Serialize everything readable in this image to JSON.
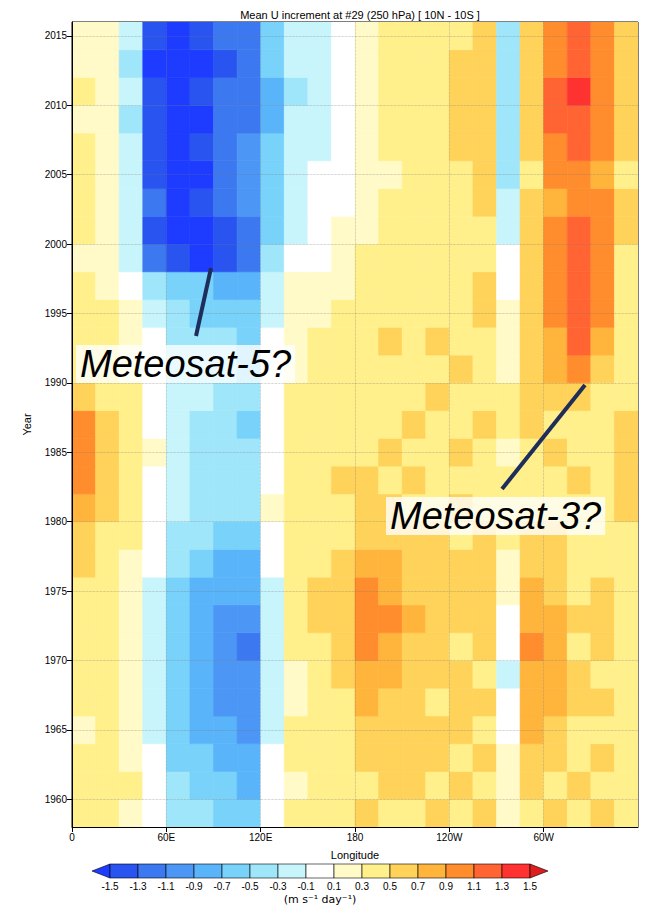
{
  "chart_data": {
    "type": "heatmap",
    "title": "Mean U increment at #29 (250 hPa) [ 10N - 10S ]",
    "x_label": "Longitude",
    "y_label": "Year",
    "xlim": [
      0,
      360
    ],
    "xticks": [
      0,
      {
        "value": 60,
        "label": "60E"
      },
      {
        "value": 120,
        "label": "120E"
      },
      180,
      {
        "value": 240,
        "label": "120W"
      },
      {
        "value": 300,
        "label": "60W"
      }
    ],
    "ylim": [
      1958,
      2016
    ],
    "yticks": [
      1960,
      1965,
      1970,
      1975,
      1980,
      1985,
      1990,
      1995,
      2000,
      2005,
      2010,
      2015
    ],
    "grid": true,
    "x_bins": [
      0,
      15,
      30,
      45,
      60,
      75,
      90,
      105,
      120,
      135,
      150,
      165,
      180,
      195,
      210,
      225,
      240,
      255,
      270,
      285,
      300,
      315,
      330,
      345,
      360
    ],
    "y_bins": [
      1958,
      1960,
      1962,
      1964,
      1966,
      1968,
      1970,
      1972,
      1974,
      1976,
      1978,
      1980,
      1982,
      1984,
      1986,
      1988,
      1990,
      1992,
      1994,
      1996,
      1998,
      2000,
      2002,
      2004,
      2006,
      2008,
      2010,
      2012,
      2014,
      2016
    ],
    "cells": [
      [
        0.4,
        0.3,
        0.2,
        0.0,
        -0.4,
        -0.5,
        -0.6,
        -0.7,
        -0.1,
        0.3,
        0.3,
        0.3,
        0.5,
        0.4,
        0.4,
        0.5,
        0.4,
        0.5,
        0.1,
        0.4,
        0.5,
        0.4,
        0.5,
        0.3
      ],
      [
        0.3,
        0.4,
        0.3,
        -0.1,
        -0.5,
        -0.7,
        -0.7,
        -0.8,
        0.0,
        0.2,
        0.4,
        0.3,
        0.4,
        0.5,
        0.5,
        0.4,
        0.5,
        0.4,
        0.2,
        0.5,
        0.4,
        0.5,
        0.4,
        0.4
      ],
      [
        0.3,
        0.3,
        0.2,
        -0.1,
        -0.6,
        -0.7,
        -0.8,
        -0.9,
        -0.1,
        0.3,
        0.4,
        0.4,
        0.5,
        0.6,
        0.5,
        0.5,
        0.4,
        0.5,
        0.1,
        0.6,
        0.5,
        0.4,
        0.5,
        0.3
      ],
      [
        0.2,
        0.3,
        0.2,
        -0.2,
        -0.6,
        -0.8,
        -0.9,
        -1.0,
        -0.2,
        0.3,
        0.3,
        0.4,
        0.6,
        0.6,
        0.5,
        0.5,
        0.5,
        0.4,
        0.0,
        0.7,
        0.6,
        0.4,
        0.4,
        0.3
      ],
      [
        0.3,
        0.4,
        0.2,
        -0.2,
        -0.7,
        -0.8,
        -1.0,
        -1.1,
        -0.2,
        0.2,
        0.3,
        0.4,
        0.7,
        0.6,
        0.5,
        0.4,
        0.5,
        0.5,
        -0.1,
        0.8,
        0.7,
        0.5,
        0.5,
        0.4
      ],
      [
        0.4,
        0.3,
        0.1,
        -0.2,
        -0.7,
        -0.9,
        -1.0,
        -1.1,
        -0.3,
        0.2,
        0.4,
        0.5,
        0.8,
        0.7,
        0.6,
        0.5,
        0.5,
        0.4,
        -0.2,
        0.8,
        0.8,
        0.5,
        0.4,
        0.3
      ],
      [
        0.3,
        0.3,
        0.2,
        -0.3,
        -0.7,
        -0.9,
        -1.1,
        -1.2,
        -0.3,
        0.3,
        0.4,
        0.5,
        0.9,
        0.8,
        0.6,
        0.5,
        0.4,
        0.5,
        -0.1,
        0.9,
        0.7,
        0.4,
        0.5,
        0.4
      ],
      [
        0.3,
        0.4,
        0.2,
        -0.2,
        -0.6,
        -0.8,
        -1.0,
        -1.0,
        -0.2,
        0.3,
        0.5,
        0.6,
        1.0,
        0.9,
        0.7,
        0.6,
        0.5,
        0.5,
        0.0,
        0.8,
        0.7,
        0.5,
        0.5,
        0.3
      ],
      [
        0.4,
        0.3,
        0.2,
        -0.2,
        -0.6,
        -0.8,
        -0.9,
        -0.9,
        -0.2,
        0.3,
        0.5,
        0.6,
        1.0,
        0.8,
        0.6,
        0.5,
        0.5,
        0.6,
        0.1,
        0.7,
        0.6,
        0.4,
        0.5,
        0.3
      ],
      [
        0.5,
        0.4,
        0.2,
        -0.1,
        -0.5,
        -0.7,
        -0.8,
        -0.8,
        -0.1,
        0.4,
        0.4,
        0.5,
        0.8,
        0.7,
        0.6,
        0.5,
        0.5,
        0.5,
        0.2,
        0.6,
        0.5,
        0.4,
        0.4,
        0.4
      ],
      [
        0.6,
        0.4,
        0.3,
        0.0,
        -0.4,
        -0.5,
        -0.6,
        -0.6,
        0.0,
        0.4,
        0.4,
        0.4,
        0.6,
        0.5,
        0.5,
        0.5,
        0.4,
        0.5,
        0.3,
        0.5,
        0.5,
        0.4,
        0.4,
        0.4
      ],
      [
        0.8,
        0.5,
        0.3,
        0.0,
        -0.3,
        -0.4,
        -0.5,
        -0.5,
        0.1,
        0.4,
        0.4,
        0.4,
        0.5,
        0.5,
        0.4,
        0.4,
        0.5,
        0.4,
        0.3,
        0.4,
        0.4,
        0.4,
        0.3,
        0.5
      ],
      [
        0.9,
        0.6,
        0.3,
        0.0,
        -0.3,
        -0.4,
        -0.4,
        -0.5,
        0.0,
        0.3,
        0.4,
        0.5,
        0.5,
        0.4,
        0.5,
        0.4,
        0.4,
        0.4,
        0.3,
        0.4,
        0.4,
        0.5,
        0.4,
        0.5
      ],
      [
        1.0,
        0.6,
        0.4,
        0.1,
        -0.3,
        -0.4,
        -0.5,
        -0.5,
        0.0,
        0.3,
        0.3,
        0.4,
        0.4,
        0.5,
        0.4,
        0.4,
        0.5,
        0.4,
        0.2,
        0.4,
        0.5,
        0.4,
        0.3,
        0.6
      ],
      [
        0.9,
        0.5,
        0.3,
        0.0,
        -0.3,
        -0.4,
        -0.5,
        -0.6,
        0.0,
        0.3,
        0.4,
        0.4,
        0.4,
        0.4,
        0.5,
        0.4,
        0.4,
        0.5,
        0.3,
        0.5,
        0.4,
        0.4,
        0.4,
        0.5
      ],
      [
        0.6,
        0.4,
        0.3,
        0.0,
        -0.3,
        -0.3,
        -0.4,
        -0.5,
        0.0,
        0.3,
        0.3,
        0.4,
        0.3,
        0.4,
        0.4,
        0.5,
        0.4,
        0.4,
        0.3,
        0.5,
        0.5,
        0.6,
        0.4,
        0.4
      ],
      [
        0.4,
        0.4,
        0.2,
        -0.1,
        -0.4,
        -0.4,
        -0.5,
        -0.6,
        -0.1,
        0.2,
        0.3,
        0.3,
        0.4,
        0.4,
        0.4,
        0.4,
        0.5,
        0.4,
        0.2,
        0.5,
        0.7,
        0.9,
        0.6,
        0.3
      ],
      [
        0.4,
        0.3,
        0.2,
        -0.1,
        -0.4,
        -0.5,
        -0.5,
        -0.6,
        -0.1,
        0.2,
        0.3,
        0.3,
        0.4,
        0.5,
        0.4,
        0.5,
        0.4,
        0.4,
        0.2,
        0.5,
        0.8,
        1.1,
        0.8,
        0.3
      ],
      [
        0.3,
        0.3,
        0.1,
        -0.2,
        -0.5,
        -0.6,
        -0.6,
        -0.7,
        -0.2,
        0.1,
        0.2,
        0.3,
        0.4,
        0.4,
        0.4,
        0.4,
        0.4,
        0.5,
        0.1,
        0.6,
        0.9,
        1.1,
        0.9,
        0.4
      ],
      [
        0.3,
        0.2,
        0.0,
        -0.4,
        -0.7,
        -0.7,
        -0.8,
        -0.8,
        -0.3,
        0.1,
        0.2,
        0.2,
        0.3,
        0.4,
        0.4,
        0.4,
        0.4,
        0.5,
        0.0,
        0.6,
        0.9,
        1.2,
        0.9,
        0.4
      ],
      [
        0.2,
        0.1,
        -0.2,
        -1.2,
        -1.5,
        -1.6,
        -1.4,
        -1.2,
        -0.5,
        -0.1,
        0.0,
        0.1,
        0.3,
        0.3,
        0.3,
        0.4,
        0.4,
        0.4,
        -0.1,
        0.5,
        0.9,
        1.2,
        1.0,
        0.4
      ],
      [
        0.3,
        0.1,
        -0.3,
        -1.4,
        -1.6,
        -1.6,
        -1.5,
        -1.2,
        -0.6,
        -0.2,
        -0.1,
        0.1,
        0.2,
        0.3,
        0.3,
        0.3,
        0.4,
        0.4,
        -0.2,
        0.5,
        0.9,
        1.1,
        0.9,
        0.5
      ],
      [
        0.3,
        0.2,
        -0.2,
        -1.3,
        -1.6,
        -1.5,
        -1.3,
        -1.1,
        -0.7,
        -0.3,
        -0.1,
        0.0,
        0.2,
        0.3,
        0.3,
        0.3,
        0.4,
        0.5,
        -0.3,
        0.5,
        0.8,
        1.0,
        0.9,
        0.5
      ],
      [
        0.3,
        0.1,
        -0.3,
        -1.4,
        -1.6,
        -1.6,
        -1.3,
        -1.0,
        -0.6,
        -0.2,
        -0.1,
        0.0,
        0.1,
        0.2,
        0.3,
        0.3,
        0.4,
        0.5,
        -0.4,
        0.4,
        0.9,
        1.0,
        0.8,
        0.4
      ],
      [
        0.3,
        0.2,
        -0.3,
        -1.5,
        -1.6,
        -1.5,
        -1.2,
        -1.1,
        -0.7,
        -0.3,
        -0.2,
        -0.1,
        0.2,
        0.3,
        0.3,
        0.3,
        0.5,
        0.5,
        -0.4,
        0.5,
        1.0,
        1.1,
        0.9,
        0.5
      ],
      [
        0.2,
        0.1,
        -0.4,
        -1.5,
        -1.7,
        -1.6,
        -1.3,
        -1.2,
        -0.8,
        -0.3,
        -0.2,
        0.0,
        0.2,
        0.3,
        0.4,
        0.3,
        0.5,
        0.6,
        -0.5,
        0.6,
        1.1,
        1.2,
        1.0,
        0.5
      ],
      [
        0.3,
        0.2,
        -0.3,
        -1.5,
        -1.6,
        -1.5,
        -1.3,
        -1.2,
        -0.8,
        -0.4,
        -0.2,
        -0.1,
        0.2,
        0.3,
        0.3,
        0.4,
        0.5,
        0.6,
        -0.4,
        0.6,
        1.1,
        1.3,
        1.0,
        0.6
      ],
      [
        0.2,
        0.1,
        -0.4,
        -1.6,
        -1.7,
        -1.6,
        -1.4,
        -1.3,
        -0.7,
        -0.3,
        -0.2,
        -0.1,
        0.1,
        0.3,
        0.4,
        0.4,
        0.5,
        0.5,
        -0.5,
        0.5,
        1.0,
        1.2,
        0.9,
        0.5
      ],
      [
        0.2,
        0.1,
        -0.3,
        -1.5,
        -1.6,
        -1.5,
        -1.3,
        -1.2,
        -0.7,
        -0.3,
        -0.2,
        0.0,
        0.2,
        0.3,
        0.3,
        0.4,
        0.4,
        0.5,
        -0.4,
        0.5,
        1.0,
        1.1,
        0.9,
        0.5
      ]
    ],
    "colorbar": {
      "ticks": [
        -1.5,
        -1.3,
        -1.1,
        -0.9,
        -0.7,
        -0.5,
        -0.3,
        -0.1,
        0.1,
        0.3,
        0.5,
        0.7,
        0.9,
        1.1,
        1.3,
        1.5
      ],
      "colors": [
        "#1e3cff",
        "#2a54f0",
        "#3c78f0",
        "#4c96f5",
        "#5ab4fa",
        "#78d2fa",
        "#a0e6fa",
        "#c8f5fc",
        "#ffffff",
        "#fffac8",
        "#fff08c",
        "#ffd25a",
        "#ffb43c",
        "#ff8c2d",
        "#ff6432",
        "#ff3232",
        "#dc1e1e"
      ],
      "label": "(m s⁻¹ day⁻¹)"
    },
    "annotations": [
      {
        "text": "Meteosat-5?"
      },
      {
        "text": "Meteosat-3?"
      }
    ]
  }
}
